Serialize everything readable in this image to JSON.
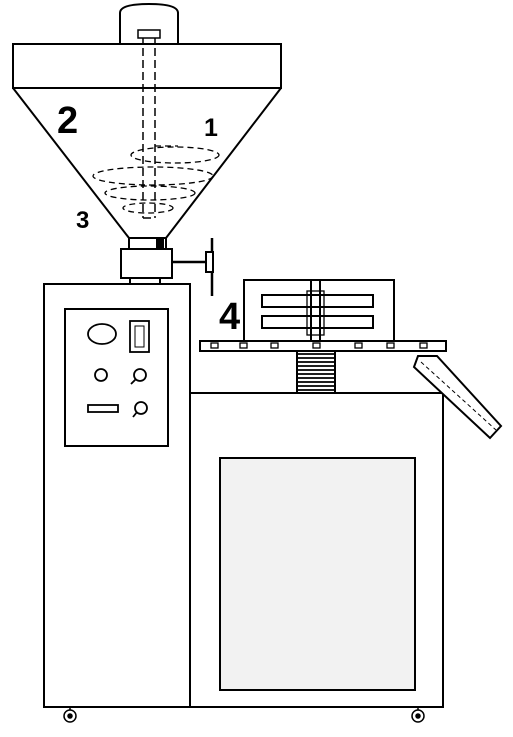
{
  "labels": {
    "one": "1",
    "two": "2",
    "three": "3",
    "four": "4"
  },
  "colors": {
    "stroke": "#000000",
    "background": "#ffffff",
    "window_fill": "#f2f2f2"
  }
}
